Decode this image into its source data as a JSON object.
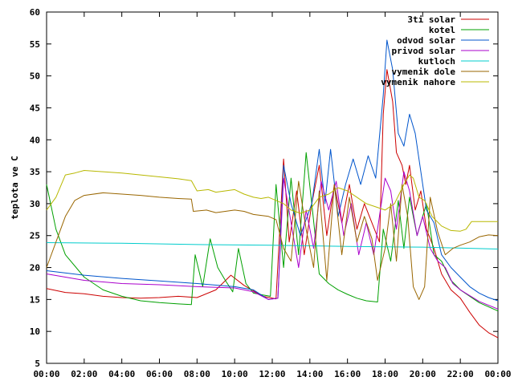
{
  "chart_data": {
    "type": "line",
    "ylabel": "teplota ve C",
    "xlabel": "",
    "title": "",
    "xlim": [
      0,
      24
    ],
    "ylim": [
      5,
      60
    ],
    "x_ticks": [
      {
        "value": 0,
        "label": "00:00"
      },
      {
        "value": 2,
        "label": "02:00"
      },
      {
        "value": 4,
        "label": "04:00"
      },
      {
        "value": 6,
        "label": "06:00"
      },
      {
        "value": 8,
        "label": "08:00"
      },
      {
        "value": 10,
        "label": "10:00"
      },
      {
        "value": 12,
        "label": "12:00"
      },
      {
        "value": 14,
        "label": "14:00"
      },
      {
        "value": 16,
        "label": "16:00"
      },
      {
        "value": 18,
        "label": "18:00"
      },
      {
        "value": 20,
        "label": "20:00"
      },
      {
        "value": 22,
        "label": "22:00"
      },
      {
        "value": 24,
        "label": "00:00"
      }
    ],
    "y_ticks": [
      {
        "value": 5,
        "label": "5"
      },
      {
        "value": 10,
        "label": "10"
      },
      {
        "value": 15,
        "label": "15"
      },
      {
        "value": 20,
        "label": "20"
      },
      {
        "value": 25,
        "label": "25"
      },
      {
        "value": 30,
        "label": "30"
      },
      {
        "value": 35,
        "label": "35"
      },
      {
        "value": 40,
        "label": "40"
      },
      {
        "value": 45,
        "label": "45"
      },
      {
        "value": 50,
        "label": "50"
      },
      {
        "value": 55,
        "label": "55"
      },
      {
        "value": 60,
        "label": "60"
      }
    ],
    "grid": false,
    "legend_position": "top-right",
    "series": [
      {
        "name": "3ti solar",
        "color": "#cc0000",
        "points": [
          [
            0,
            16.7
          ],
          [
            1,
            16.1
          ],
          [
            2,
            15.9
          ],
          [
            3,
            15.5
          ],
          [
            4,
            15.3
          ],
          [
            5,
            15.2
          ],
          [
            6,
            15.3
          ],
          [
            7,
            15.5
          ],
          [
            8,
            15.3
          ],
          [
            9,
            16.5
          ],
          [
            9.8,
            18.8
          ],
          [
            10.5,
            17.2
          ],
          [
            11.5,
            15.5
          ],
          [
            12.2,
            15.1
          ],
          [
            12.6,
            37.0
          ],
          [
            12.9,
            24.0
          ],
          [
            13.3,
            32.0
          ],
          [
            13.7,
            22.0
          ],
          [
            14.1,
            30.0
          ],
          [
            14.5,
            36.0
          ],
          [
            14.9,
            25.0
          ],
          [
            15.3,
            33.0
          ],
          [
            15.7,
            27.0
          ],
          [
            16.1,
            33.0
          ],
          [
            16.5,
            26.0
          ],
          [
            16.9,
            30.0
          ],
          [
            17.3,
            27.0
          ],
          [
            17.7,
            24.0
          ],
          [
            17.9,
            44.0
          ],
          [
            18.1,
            51.0
          ],
          [
            18.4,
            46.0
          ],
          [
            18.6,
            38.0
          ],
          [
            18.9,
            36.0
          ],
          [
            19.1,
            33.0
          ],
          [
            19.3,
            36.0
          ],
          [
            19.6,
            29.0
          ],
          [
            19.9,
            32.0
          ],
          [
            20.2,
            26.0
          ],
          [
            20.6,
            23.0
          ],
          [
            21.0,
            19.0
          ],
          [
            21.5,
            16.5
          ],
          [
            22.0,
            15.2
          ],
          [
            22.5,
            13.0
          ],
          [
            23.0,
            11.0
          ],
          [
            23.5,
            9.8
          ],
          [
            24.0,
            9.0
          ]
        ]
      },
      {
        "name": "kotel",
        "color": "#00a000",
        "points": [
          [
            0,
            33.0
          ],
          [
            0.5,
            26.0
          ],
          [
            1,
            22.0
          ],
          [
            2,
            18.5
          ],
          [
            3,
            16.5
          ],
          [
            4,
            15.5
          ],
          [
            5,
            14.8
          ],
          [
            6,
            14.5
          ],
          [
            7,
            14.3
          ],
          [
            7.7,
            14.2
          ],
          [
            7.9,
            22.0
          ],
          [
            8.3,
            17.0
          ],
          [
            8.7,
            24.5
          ],
          [
            9.1,
            20.0
          ],
          [
            9.5,
            18.0
          ],
          [
            9.9,
            16.2
          ],
          [
            10.2,
            23.0
          ],
          [
            10.6,
            17.5
          ],
          [
            11.0,
            16.0
          ],
          [
            11.5,
            15.7
          ],
          [
            11.9,
            15.5
          ],
          [
            12.2,
            33.0
          ],
          [
            12.6,
            20.0
          ],
          [
            13.0,
            34.0
          ],
          [
            13.4,
            22.0
          ],
          [
            13.8,
            38.0
          ],
          [
            14.1,
            30.0
          ],
          [
            14.5,
            19.0
          ],
          [
            15.0,
            17.5
          ],
          [
            15.5,
            16.5
          ],
          [
            16.0,
            15.8
          ],
          [
            16.5,
            15.2
          ],
          [
            17.0,
            14.8
          ],
          [
            17.6,
            14.6
          ],
          [
            17.9,
            26.0
          ],
          [
            18.3,
            21.0
          ],
          [
            18.7,
            30.5
          ],
          [
            19.0,
            23.0
          ],
          [
            19.3,
            31.0
          ],
          [
            19.7,
            25.0
          ],
          [
            20.2,
            30.0
          ],
          [
            20.6,
            22.0
          ],
          [
            21.0,
            21.0
          ],
          [
            21.5,
            18.0
          ],
          [
            22.0,
            16.5
          ],
          [
            23.0,
            14.5
          ],
          [
            24.0,
            13.2
          ]
        ]
      },
      {
        "name": "odvod solar",
        "color": "#0055cc",
        "points": [
          [
            0,
            19.5
          ],
          [
            2,
            18.8
          ],
          [
            4,
            18.3
          ],
          [
            6,
            17.9
          ],
          [
            8,
            17.5
          ],
          [
            10,
            17.0
          ],
          [
            11,
            16.5
          ],
          [
            11.8,
            15.0
          ],
          [
            12.3,
            15.2
          ],
          [
            12.6,
            36.0
          ],
          [
            13.0,
            30.0
          ],
          [
            13.5,
            25.0
          ],
          [
            14.1,
            30.0
          ],
          [
            14.5,
            38.5
          ],
          [
            14.8,
            30.0
          ],
          [
            15.1,
            38.5
          ],
          [
            15.5,
            28.0
          ],
          [
            15.9,
            33.0
          ],
          [
            16.3,
            37.0
          ],
          [
            16.7,
            33.0
          ],
          [
            17.1,
            37.5
          ],
          [
            17.5,
            34.0
          ],
          [
            17.9,
            47.0
          ],
          [
            18.1,
            55.6
          ],
          [
            18.4,
            51.0
          ],
          [
            18.7,
            41.0
          ],
          [
            19.0,
            39.0
          ],
          [
            19.3,
            44.0
          ],
          [
            19.6,
            41.0
          ],
          [
            19.9,
            35.0
          ],
          [
            20.2,
            29.0
          ],
          [
            20.6,
            27.0
          ],
          [
            21.0,
            22.0
          ],
          [
            21.5,
            20.0
          ],
          [
            22.0,
            18.5
          ],
          [
            22.5,
            17.0
          ],
          [
            23.0,
            16.0
          ],
          [
            23.5,
            15.3
          ],
          [
            24.0,
            14.8
          ]
        ]
      },
      {
        "name": "privod solar",
        "color": "#aa00cc",
        "points": [
          [
            0,
            19.0
          ],
          [
            2,
            18.0
          ],
          [
            4,
            17.5
          ],
          [
            6,
            17.3
          ],
          [
            8,
            17.0
          ],
          [
            10,
            16.8
          ],
          [
            11,
            16.2
          ],
          [
            11.8,
            15.0
          ],
          [
            12.3,
            15.2
          ],
          [
            12.6,
            34.0
          ],
          [
            13.0,
            27.0
          ],
          [
            13.4,
            20.0
          ],
          [
            13.8,
            29.0
          ],
          [
            14.2,
            23.0
          ],
          [
            14.6,
            33.5
          ],
          [
            15.0,
            29.0
          ],
          [
            15.4,
            33.5
          ],
          [
            15.8,
            25.0
          ],
          [
            16.2,
            30.0
          ],
          [
            16.6,
            22.0
          ],
          [
            17.0,
            27.0
          ],
          [
            17.4,
            22.0
          ],
          [
            17.8,
            30.0
          ],
          [
            18.0,
            34.0
          ],
          [
            18.3,
            32.0
          ],
          [
            18.6,
            26.0
          ],
          [
            19.0,
            35.0
          ],
          [
            19.3,
            32.0
          ],
          [
            19.7,
            25.0
          ],
          [
            20.0,
            28.0
          ],
          [
            20.4,
            23.0
          ],
          [
            20.8,
            21.0
          ],
          [
            21.2,
            20.0
          ],
          [
            21.6,
            17.5
          ],
          [
            22.0,
            16.5
          ],
          [
            23.0,
            14.7
          ],
          [
            24.0,
            13.5
          ]
        ]
      },
      {
        "name": "kutloch",
        "color": "#00cccc",
        "points": [
          [
            0,
            23.9
          ],
          [
            4,
            23.8
          ],
          [
            8,
            23.6
          ],
          [
            12,
            23.5
          ],
          [
            16,
            23.3
          ],
          [
            20,
            23.2
          ],
          [
            24,
            22.9
          ]
        ]
      },
      {
        "name": "vymenik dole",
        "color": "#996600",
        "points": [
          [
            0,
            20.0
          ],
          [
            0.5,
            24.0
          ],
          [
            1,
            28.0
          ],
          [
            1.5,
            30.5
          ],
          [
            2,
            31.3
          ],
          [
            3,
            31.7
          ],
          [
            4,
            31.5
          ],
          [
            5,
            31.3
          ],
          [
            6,
            31.0
          ],
          [
            7,
            30.8
          ],
          [
            7.7,
            30.7
          ],
          [
            7.8,
            28.8
          ],
          [
            8.5,
            29.0
          ],
          [
            9,
            28.6
          ],
          [
            10,
            29.0
          ],
          [
            10.5,
            28.8
          ],
          [
            11,
            28.3
          ],
          [
            11.8,
            28.0
          ],
          [
            12.2,
            27.5
          ],
          [
            12.6,
            23.0
          ],
          [
            13.0,
            21.0
          ],
          [
            13.4,
            33.5
          ],
          [
            13.8,
            26.0
          ],
          [
            14.2,
            20.0
          ],
          [
            14.5,
            32.0
          ],
          [
            14.9,
            18.0
          ],
          [
            15.3,
            33.0
          ],
          [
            15.7,
            22.0
          ],
          [
            16.1,
            31.0
          ],
          [
            16.5,
            24.0
          ],
          [
            16.9,
            28.0
          ],
          [
            17.3,
            24.5
          ],
          [
            17.6,
            18.0
          ],
          [
            18.0,
            23.0
          ],
          [
            18.3,
            30.0
          ],
          [
            18.6,
            21.0
          ],
          [
            18.9,
            33.0
          ],
          [
            19.2,
            28.0
          ],
          [
            19.5,
            17.0
          ],
          [
            19.8,
            15.0
          ],
          [
            20.1,
            17.0
          ],
          [
            20.4,
            31.0
          ],
          [
            20.8,
            25.5
          ],
          [
            21.2,
            22.0
          ],
          [
            21.6,
            23.0
          ],
          [
            22.0,
            23.5
          ],
          [
            22.5,
            24.0
          ],
          [
            23.0,
            24.8
          ],
          [
            23.5,
            25.1
          ],
          [
            24.0,
            25.0
          ]
        ]
      },
      {
        "name": "vymenik nahore",
        "color": "#b8b800",
        "points": [
          [
            0,
            29.0
          ],
          [
            0.5,
            31.0
          ],
          [
            1,
            34.5
          ],
          [
            1.5,
            34.8
          ],
          [
            2,
            35.2
          ],
          [
            3,
            35.0
          ],
          [
            4,
            34.8
          ],
          [
            5,
            34.5
          ],
          [
            6,
            34.2
          ],
          [
            7,
            33.9
          ],
          [
            7.7,
            33.6
          ],
          [
            8.0,
            32.0
          ],
          [
            8.6,
            32.2
          ],
          [
            9,
            31.8
          ],
          [
            9.5,
            32.0
          ],
          [
            10,
            32.2
          ],
          [
            10.5,
            31.5
          ],
          [
            11,
            31.0
          ],
          [
            11.4,
            30.8
          ],
          [
            11.8,
            31.0
          ],
          [
            12.2,
            30.5
          ],
          [
            12.6,
            30.0
          ],
          [
            13.0,
            29.0
          ],
          [
            13.5,
            28.5
          ],
          [
            14.0,
            29.0
          ],
          [
            14.5,
            31.0
          ],
          [
            15.0,
            31.5
          ],
          [
            15.5,
            32.5
          ],
          [
            16.0,
            32.0
          ],
          [
            16.5,
            31.0
          ],
          [
            17.0,
            30.0
          ],
          [
            17.5,
            29.5
          ],
          [
            18.0,
            29.0
          ],
          [
            18.5,
            30.0
          ],
          [
            19.0,
            33.0
          ],
          [
            19.3,
            34.5
          ],
          [
            19.5,
            34.0
          ],
          [
            19.8,
            31.0
          ],
          [
            20.1,
            30.5
          ],
          [
            20.5,
            28.0
          ],
          [
            21.0,
            26.5
          ],
          [
            21.5,
            25.8
          ],
          [
            22.0,
            25.7
          ],
          [
            22.3,
            26.0
          ],
          [
            22.6,
            27.2
          ],
          [
            23.0,
            27.2
          ],
          [
            24.0,
            27.2
          ]
        ]
      }
    ]
  }
}
